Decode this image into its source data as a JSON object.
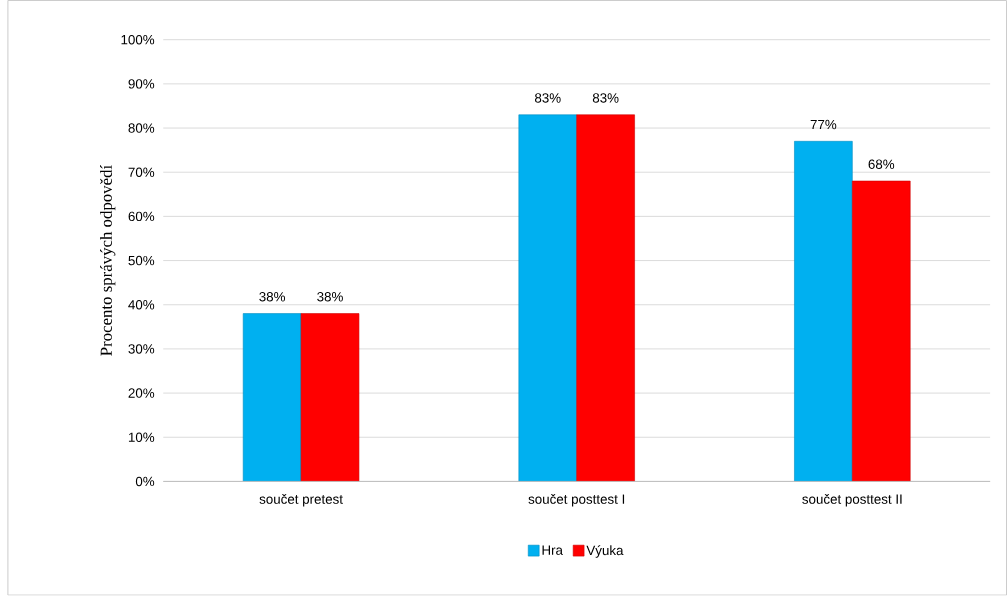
{
  "chart_data": {
    "type": "bar",
    "ylabel": "Procento správých odpovědí",
    "categories": [
      "součet pretest",
      "součet posttest I",
      "součet posttest II"
    ],
    "series": [
      {
        "name": "Hra",
        "color": "#00b0f0",
        "values": [
          38,
          83,
          77
        ],
        "value_labels": [
          "38%",
          "83%",
          "77%"
        ]
      },
      {
        "name": "Výuka",
        "color": "#ff0000",
        "values": [
          38,
          83,
          68
        ],
        "value_labels": [
          "38%",
          "83%",
          "68%"
        ]
      }
    ],
    "ylim": [
      0,
      100
    ],
    "yticks": [
      {
        "value": 0,
        "label": "0%"
      },
      {
        "value": 10,
        "label": "10%"
      },
      {
        "value": 20,
        "label": "20%"
      },
      {
        "value": 30,
        "label": "30%"
      },
      {
        "value": 40,
        "label": "40%"
      },
      {
        "value": 50,
        "label": "50%"
      },
      {
        "value": 60,
        "label": "60%"
      },
      {
        "value": 70,
        "label": "70%"
      },
      {
        "value": 80,
        "label": "80%"
      },
      {
        "value": 90,
        "label": "90%"
      },
      {
        "value": 100,
        "label": "100%"
      }
    ],
    "grid": "y",
    "legend": "bottom"
  }
}
